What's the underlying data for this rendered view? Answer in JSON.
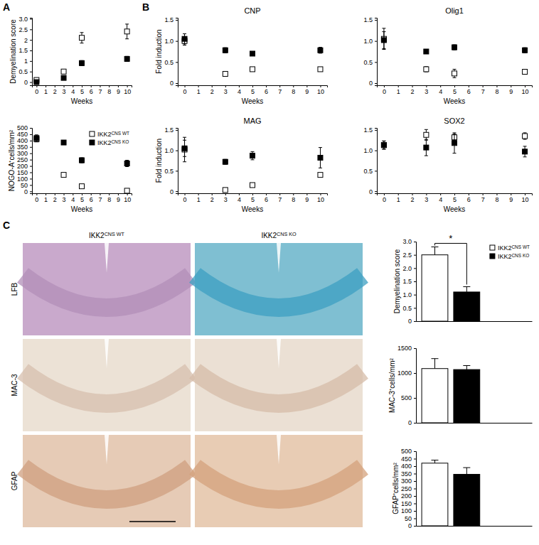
{
  "panel_labels": [
    "A",
    "B",
    "C"
  ],
  "micrographs": {
    "columns": [
      "IKK2CNS WT",
      "IKK2CNS KO"
    ],
    "rows": [
      "LFB",
      "MAC-3",
      "GFAP"
    ]
  },
  "chart_data": [
    {
      "type": "scatter",
      "y_label": "Demyelination score",
      "x_label": "Weeks",
      "x": [
        0,
        3,
        5,
        10
      ],
      "xlim": [
        -0.5,
        10.5
      ],
      "xticks": [
        0,
        1,
        2,
        3,
        4,
        5,
        6,
        7,
        8,
        9,
        10
      ],
      "ylim": [
        -0.15,
        3.05
      ],
      "yticks": [
        0,
        0.5,
        1,
        1.5,
        2,
        2.5,
        {
          "value": 3,
          "label": "3.0"
        }
      ],
      "series": [
        {
          "color": "#ffffff",
          "marker": "square",
          "values": [
            0.1,
            0.5,
            2.1,
            2.4
          ],
          "errors": [
            0.05,
            0.05,
            0.25,
            0.35
          ]
        },
        {
          "color": "#000000",
          "marker": "square",
          "values": [
            0.0,
            0.2,
            0.9,
            1.1
          ],
          "errors": [
            0.1,
            0.05,
            0.12,
            0.12
          ]
        }
      ]
    },
    {
      "type": "scatter",
      "y_label": "NOGO-A⁺cells/mm²",
      "x_label": "Weeks",
      "x": [
        0,
        3,
        5,
        10
      ],
      "xlim": [
        -0.5,
        10.5
      ],
      "xticks": [
        0,
        1,
        2,
        3,
        4,
        5,
        6,
        7,
        8,
        9,
        10
      ],
      "ylim": [
        -15,
        500
      ],
      "yticks": [
        0,
        50,
        100,
        150,
        200,
        250,
        300,
        350,
        400,
        450,
        500
      ],
      "legend": "upper right",
      "series": [
        {
          "name": "IKK2CNS WT",
          "color": "#ffffff",
          "marker": "square",
          "values": [
            410,
            130,
            40,
            5
          ],
          "errors": [
            20,
            8,
            6,
            4
          ]
        },
        {
          "name": "IKK2CNS KO",
          "color": "#000000",
          "marker": "square",
          "values": [
            420,
            385,
            245,
            220
          ],
          "errors": [
            25,
            15,
            20,
            25
          ]
        }
      ]
    },
    {
      "type": "scatter",
      "title": "CNP",
      "y_label": "Fold induction",
      "x_label": "Weeks",
      "x": [
        0,
        3,
        5,
        10
      ],
      "xlim": [
        -0.5,
        10.5
      ],
      "xticks": [
        0,
        1,
        2,
        3,
        4,
        5,
        6,
        7,
        8,
        9,
        10
      ],
      "ylim": [
        -0.05,
        1.55
      ],
      "yticks": [
        0,
        0.5,
        {
          "value": 1,
          "label": "1.0"
        },
        1.5
      ],
      "series": [
        {
          "color": "#ffffff",
          "marker": "square",
          "values": [
            1.0,
            0.22,
            0.33,
            0.33
          ],
          "errors": [
            0.1,
            0.05,
            0.05,
            0.04
          ]
        },
        {
          "color": "#000000",
          "marker": "square",
          "values": [
            1.05,
            0.78,
            0.7,
            0.78
          ],
          "errors": [
            0.12,
            0.06,
            0.05,
            0.07
          ]
        }
      ]
    },
    {
      "type": "scatter",
      "title": "Olig1",
      "x_label": "Weeks",
      "x": [
        0,
        3,
        5,
        10
      ],
      "xlim": [
        -0.5,
        10.5
      ],
      "xticks": [
        0,
        1,
        2,
        3,
        4,
        5,
        6,
        7,
        8,
        9,
        10
      ],
      "ylim": [
        -0.05,
        1.55
      ],
      "yticks": [
        0,
        0.5,
        {
          "value": 1,
          "label": "1.0"
        },
        1.5
      ],
      "series": [
        {
          "color": "#ffffff",
          "marker": "square",
          "values": [
            1.05,
            0.33,
            0.23,
            0.27
          ],
          "errors": [
            0.25,
            0.06,
            0.1,
            0.03
          ]
        },
        {
          "color": "#000000",
          "marker": "square",
          "values": [
            1.02,
            0.75,
            0.85,
            0.78
          ],
          "errors": [
            0.2,
            0.03,
            0.06,
            0.06
          ]
        }
      ]
    },
    {
      "type": "scatter",
      "title": "MAG",
      "y_label": "Fold induction",
      "x_label": "Weeks",
      "x": [
        0,
        3,
        5,
        10
      ],
      "xlim": [
        -0.5,
        10.5
      ],
      "xticks": [
        0,
        1,
        2,
        3,
        4,
        5,
        6,
        7,
        8,
        9,
        10
      ],
      "ylim": [
        -0.05,
        1.55
      ],
      "yticks": [
        0,
        0.5,
        {
          "value": 1,
          "label": "1.0"
        },
        1.5
      ],
      "series": [
        {
          "color": "#ffffff",
          "marker": "square",
          "values": [
            1.02,
            0.03,
            0.15,
            0.4
          ],
          "errors": [
            0.3,
            0.02,
            0.05,
            0.04
          ]
        },
        {
          "color": "#000000",
          "marker": "square",
          "values": [
            1.05,
            0.72,
            0.87,
            0.82
          ],
          "errors": [
            0.2,
            0.06,
            0.1,
            0.25
          ]
        }
      ]
    },
    {
      "type": "scatter",
      "title": "SOX2",
      "x_label": "Weeks",
      "x": [
        0,
        3,
        5,
        10
      ],
      "xlim": [
        -0.5,
        10.5
      ],
      "xticks": [
        0,
        1,
        2,
        3,
        4,
        5,
        6,
        7,
        8,
        9,
        10
      ],
      "ylim": [
        -0.05,
        1.55
      ],
      "yticks": [
        0,
        0.5,
        {
          "value": 1,
          "label": "1.0"
        },
        1.5
      ],
      "series": [
        {
          "color": "#ffffff",
          "marker": "square",
          "values": [
            1.13,
            1.38,
            1.32,
            1.35
          ],
          "errors": [
            0.1,
            0.13,
            0.08,
            0.08
          ]
        },
        {
          "color": "#000000",
          "marker": "square",
          "values": [
            1.13,
            1.07,
            1.18,
            0.97
          ],
          "errors": [
            0.1,
            0.2,
            0.25,
            0.13
          ]
        }
      ]
    },
    {
      "type": "bar",
      "y_label": "Demyelination score",
      "categories": [
        null
      ],
      "ylim": [
        0,
        3
      ],
      "yticks": [
        0,
        0.5,
        {
          "value": 1,
          "label": "1.0"
        },
        1.5,
        {
          "value": 2,
          "label": "2.0"
        },
        2.5,
        {
          "value": 3,
          "label": "3.0"
        }
      ],
      "legend": "upper right",
      "annotations": [
        {
          "text": "*"
        }
      ],
      "series": [
        {
          "name": "IKK2CNS WT",
          "color": "#ffffff",
          "values": [
            2.5
          ],
          "errors": [
            0.3
          ]
        },
        {
          "name": "IKK2CNS KO",
          "color": "#000000",
          "values": [
            1.1
          ],
          "errors": [
            0.2
          ]
        }
      ]
    },
    {
      "type": "bar",
      "y_label": "MAC-3⁺cells/mm²",
      "categories": [
        null
      ],
      "ylim": [
        0,
        1500
      ],
      "yticks": [
        0,
        500,
        1000,
        1500
      ],
      "series": [
        {
          "color": "#ffffff",
          "values": [
            1090
          ],
          "errors": [
            200
          ]
        },
        {
          "color": "#000000",
          "values": [
            1070
          ],
          "errors": [
            80
          ]
        }
      ]
    },
    {
      "type": "bar",
      "y_label": "GFAP⁺cells/mm²",
      "categories": [
        null
      ],
      "ylim": [
        0,
        500
      ],
      "yticks": [
        0,
        50,
        100,
        150,
        200,
        250,
        300,
        350,
        400,
        450,
        500
      ],
      "series": [
        {
          "color": "#ffffff",
          "values": [
            420
          ],
          "errors": [
            20
          ]
        },
        {
          "color": "#000000",
          "values": [
            345
          ],
          "errors": [
            45
          ]
        }
      ]
    }
  ]
}
